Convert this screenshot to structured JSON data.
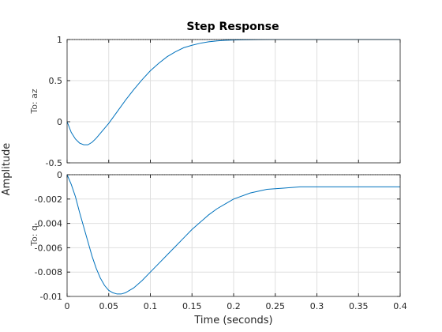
{
  "chart_data": {
    "type": "line",
    "title": "Step Response",
    "xlabel": "Time (seconds)",
    "ylabel": "Amplitude",
    "grid": true,
    "xlim": [
      0,
      0.4
    ],
    "xticks": [
      "0",
      "0.05",
      "0.1",
      "0.15",
      "0.2",
      "0.25",
      "0.3",
      "0.35",
      "0.4"
    ],
    "line_color": "#0072bd",
    "subplots": [
      {
        "row_label": "To: az",
        "ylim": [
          -0.5,
          1
        ],
        "yticks": [
          "-0.5",
          "0",
          "0.5",
          "1"
        ],
        "reference_value": 1,
        "series": {
          "x": [
            0,
            0.005,
            0.01,
            0.015,
            0.02,
            0.025,
            0.03,
            0.035,
            0.04,
            0.045,
            0.05,
            0.06,
            0.07,
            0.08,
            0.09,
            0.1,
            0.11,
            0.12,
            0.13,
            0.14,
            0.15,
            0.16,
            0.17,
            0.18,
            0.19,
            0.2,
            0.21,
            0.22,
            0.23,
            0.25,
            0.27,
            0.3,
            0.35,
            0.4
          ],
          "y": [
            0,
            -0.13,
            -0.21,
            -0.26,
            -0.28,
            -0.28,
            -0.25,
            -0.2,
            -0.14,
            -0.08,
            -0.02,
            0.12,
            0.26,
            0.39,
            0.51,
            0.62,
            0.71,
            0.79,
            0.85,
            0.9,
            0.93,
            0.955,
            0.972,
            0.983,
            0.99,
            0.994,
            0.996,
            0.998,
            0.999,
            1,
            1,
            1,
            1,
            1
          ]
        }
      },
      {
        "row_label": "To: q",
        "ylim": [
          -0.01,
          0
        ],
        "yticks": [
          "-0.01",
          "-0.008",
          "-0.006",
          "-0.004",
          "-0.002",
          "0"
        ],
        "reference_value": 0,
        "series": {
          "x": [
            0,
            0.005,
            0.01,
            0.015,
            0.02,
            0.025,
            0.03,
            0.035,
            0.04,
            0.045,
            0.05,
            0.055,
            0.06,
            0.065,
            0.07,
            0.075,
            0.08,
            0.09,
            0.1,
            0.11,
            0.12,
            0.13,
            0.14,
            0.15,
            0.16,
            0.17,
            0.18,
            0.19,
            0.2,
            0.22,
            0.24,
            0.26,
            0.28,
            0.3,
            0.35,
            0.4
          ],
          "y": [
            0,
            -0.0008,
            -0.0018,
            -0.0031,
            -0.0043,
            -0.0055,
            -0.0067,
            -0.0077,
            -0.0085,
            -0.0091,
            -0.0095,
            -0.0097,
            -0.0098,
            -0.0098,
            -0.0097,
            -0.0095,
            -0.0093,
            -0.0087,
            -0.008,
            -0.0073,
            -0.0066,
            -0.0059,
            -0.0052,
            -0.0045,
            -0.0039,
            -0.0033,
            -0.0028,
            -0.0024,
            -0.002,
            -0.0015,
            -0.0012,
            -0.0011,
            -0.001,
            -0.001,
            -0.001,
            -0.001
          ]
        }
      }
    ]
  }
}
